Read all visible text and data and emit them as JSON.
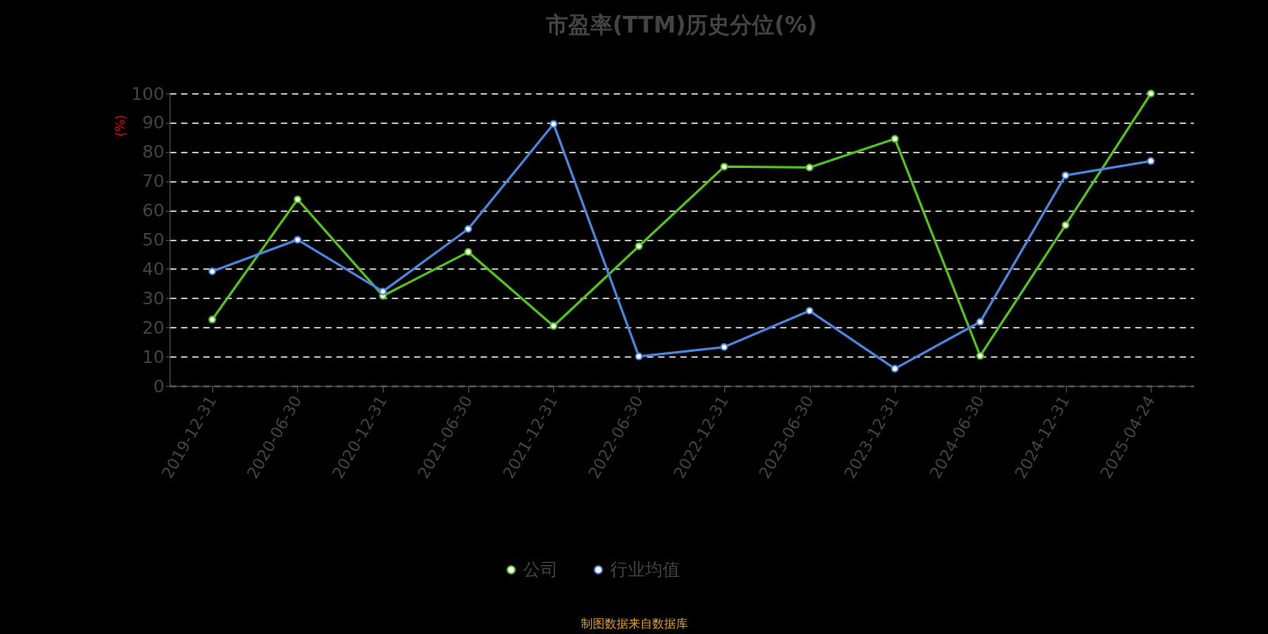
{
  "chart_data": {
    "type": "line",
    "title": "市盈率(TTM)历史分位(%)",
    "ylabel": "(%)",
    "categories": [
      "2019-12-31",
      "2020-06-30",
      "2020-12-31",
      "2021-06-30",
      "2021-12-31",
      "2022-06-30",
      "2022-12-31",
      "2023-06-30",
      "2023-12-31",
      "2024-06-30",
      "2024-12-31",
      "2025-04-24"
    ],
    "series": [
      {
        "name": "公司",
        "color": "#52c41a",
        "values": [
          22.7,
          63.8,
          30.8,
          45.8,
          20.5,
          47.8,
          75,
          74.7,
          84.5,
          10.3,
          55,
          100
        ]
      },
      {
        "name": "行业均值",
        "color": "#4a86e0",
        "values": [
          39.2,
          50,
          32.3,
          53.7,
          89.6,
          10.1,
          13.3,
          25.7,
          5.9,
          21.9,
          72,
          76.9
        ]
      }
    ],
    "ylim": [
      0,
      100
    ],
    "yticks": [
      0,
      10,
      20,
      30,
      40,
      50,
      60,
      70,
      80,
      90,
      100
    ],
    "grid": "y",
    "legend": "bottom",
    "marker": "circle",
    "line_style": "solid",
    "annotations": [
      "制图数据来自数据库"
    ]
  }
}
